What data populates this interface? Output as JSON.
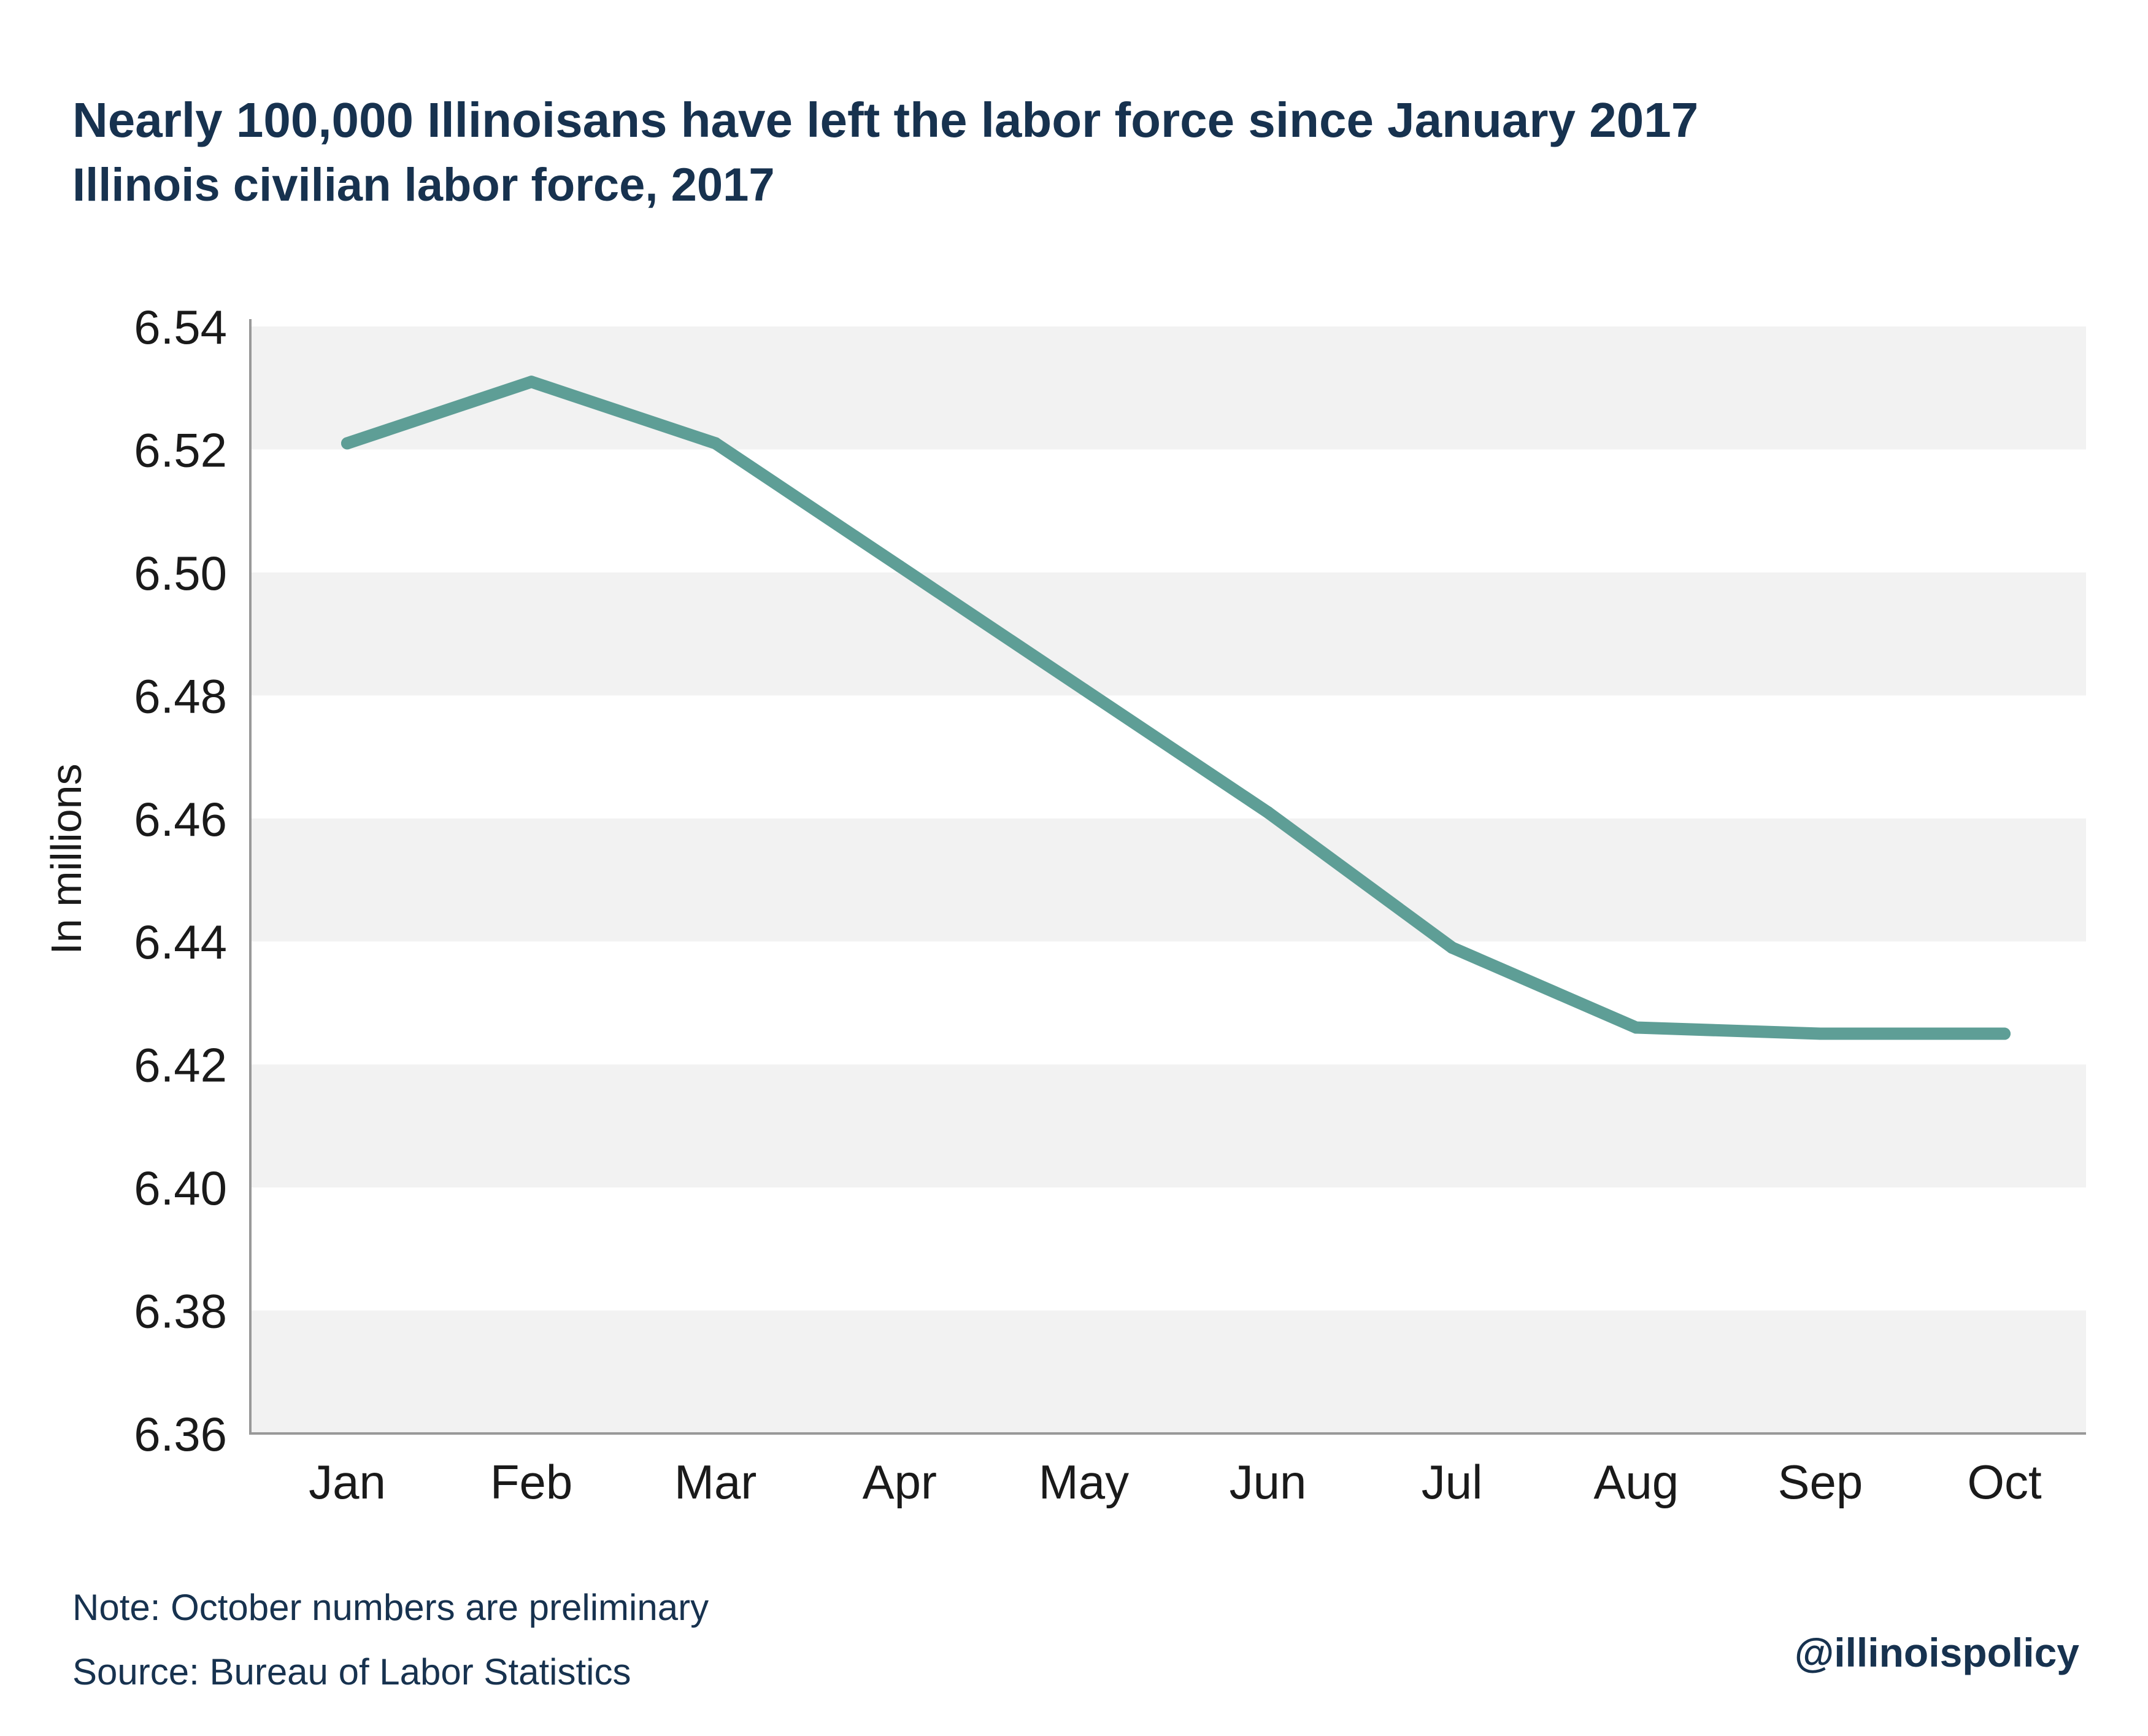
{
  "chart_data": {
    "type": "line",
    "title": "Nearly 100,000 Illinoisans have left the labor force since January 2017",
    "subtitle": "Illinois civilian labor force, 2017",
    "ylabel": "In millions",
    "xlabel": "",
    "categories": [
      "Jan",
      "Feb",
      "Mar",
      "Apr",
      "May",
      "Jun",
      "Jul",
      "Aug",
      "Sep",
      "Oct"
    ],
    "series": [
      {
        "values": [
          6.521,
          6.531,
          6.521,
          6.501,
          6.481,
          6.461,
          6.439,
          6.426,
          6.425,
          6.425
        ]
      }
    ],
    "ylim": [
      6.36,
      6.54
    ],
    "yticks": [
      "6.36",
      "6.38",
      "6.40",
      "6.42",
      "6.44",
      "6.46",
      "6.48",
      "6.50",
      "6.52",
      "6.54"
    ],
    "grid": "alternating horizontal bands",
    "legend": "none",
    "colors": {
      "line": "#5e9e96",
      "band": "#f2f2f2",
      "text": "#17324f"
    }
  },
  "footer": {
    "note": "Note: October numbers are preliminary",
    "source": "Source: Bureau of Labor Statistics",
    "handle": "@illinoispolicy"
  }
}
